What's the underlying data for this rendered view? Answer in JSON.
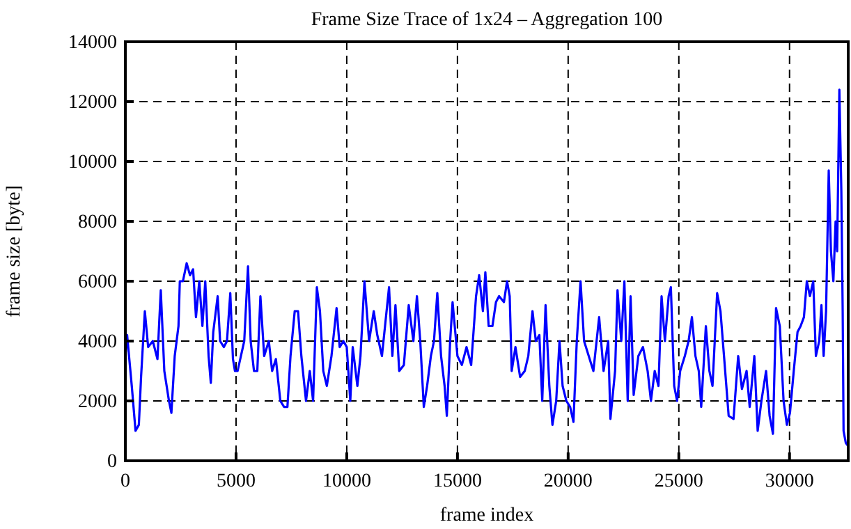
{
  "chart_data": {
    "type": "line",
    "title": "Frame Size Trace of 1x24 – Aggregation 100",
    "xlabel": "frame index",
    "ylabel": "frame size [byte]",
    "xlim": [
      0,
      32650
    ],
    "xticks": [
      0,
      5000,
      10000,
      15000,
      20000,
      25000,
      30000
    ],
    "ylim": [
      0,
      14000
    ],
    "yticks": [
      0,
      2000,
      4000,
      6000,
      8000,
      10000,
      12000,
      14000
    ],
    "grid": true,
    "marker": "none",
    "line_style": "solid",
    "series": [
      {
        "color": "#0000ff",
        "x": [
          0,
          80,
          290,
          460,
          610,
          710,
          880,
          1030,
          1240,
          1450,
          1600,
          1760,
          1970,
          2080,
          2230,
          2400,
          2460,
          2600,
          2770,
          2920,
          3060,
          3190,
          3340,
          3480,
          3610,
          3760,
          3860,
          3970,
          4170,
          4280,
          4450,
          4590,
          4740,
          4860,
          4950,
          5070,
          5220,
          5370,
          5540,
          5660,
          5810,
          5960,
          6100,
          6270,
          6480,
          6630,
          6800,
          7000,
          7170,
          7320,
          7460,
          7650,
          7800,
          7950,
          8160,
          8330,
          8480,
          8650,
          8790,
          8940,
          9100,
          9310,
          9540,
          9680,
          9850,
          10000,
          10160,
          10270,
          10480,
          10620,
          10800,
          11010,
          11220,
          11380,
          11590,
          11910,
          12060,
          12200,
          12370,
          12580,
          12800,
          13010,
          13170,
          13320,
          13480,
          13630,
          13800,
          13940,
          14090,
          14260,
          14420,
          14520,
          14670,
          14780,
          15000,
          15200,
          15410,
          15620,
          15840,
          15980,
          16150,
          16260,
          16410,
          16580,
          16740,
          16880,
          17100,
          17240,
          17360,
          17450,
          17620,
          17830,
          18040,
          18200,
          18390,
          18540,
          18700,
          18830,
          18980,
          19150,
          19290,
          19460,
          19610,
          19750,
          19920,
          20090,
          20240,
          20390,
          20560,
          20720,
          20930,
          21140,
          21400,
          21600,
          21810,
          21910,
          22120,
          22230,
          22400,
          22540,
          22690,
          22820,
          22960,
          23170,
          23380,
          23590,
          23740,
          23910,
          24080,
          24220,
          24370,
          24540,
          24640,
          24790,
          24920,
          25060,
          25270,
          25440,
          25590,
          25750,
          25900,
          26010,
          26220,
          26380,
          26520,
          26730,
          26880,
          27040,
          27250,
          27470,
          27680,
          27850,
          28060,
          28200,
          28410,
          28560,
          28730,
          28940,
          29100,
          29250,
          29390,
          29560,
          29730,
          29880,
          30020,
          30190,
          30360,
          30500,
          30650,
          30780,
          30920,
          31070,
          31190,
          31340,
          31440,
          31540,
          31650,
          31770,
          31870,
          31980,
          32080,
          32150,
          32250,
          32340,
          32400,
          32440,
          32540,
          32640
        ],
        "values": [
          3500,
          4200,
          2500,
          1000,
          1200,
          2800,
          5000,
          3800,
          4000,
          3400,
          5700,
          3000,
          2000,
          1600,
          3500,
          4500,
          6000,
          6000,
          6600,
          6200,
          6400,
          4800,
          6000,
          4500,
          6000,
          3500,
          2600,
          4300,
          5500,
          4000,
          3800,
          4000,
          5600,
          3400,
          3000,
          3000,
          3500,
          4000,
          6500,
          4000,
          3000,
          3000,
          5500,
          3500,
          4000,
          3000,
          3400,
          2000,
          1800,
          1800,
          3500,
          5000,
          5000,
          3500,
          2000,
          3000,
          2000,
          5800,
          5000,
          3000,
          2500,
          3500,
          5100,
          3800,
          4000,
          3800,
          2000,
          3800,
          2500,
          3500,
          6000,
          4000,
          5000,
          4200,
          3500,
          5800,
          3500,
          5200,
          3000,
          3200,
          5200,
          4000,
          5500,
          4000,
          1800,
          2500,
          3500,
          4000,
          5600,
          3500,
          2500,
          1500,
          4000,
          5300,
          3500,
          3200,
          3800,
          3200,
          5500,
          6200,
          5000,
          6300,
          4500,
          4500,
          5300,
          5500,
          5300,
          6000,
          5500,
          3000,
          3800,
          2800,
          3000,
          3500,
          5000,
          4000,
          4200,
          2000,
          5200,
          2500,
          1200,
          2000,
          4000,
          2500,
          2000,
          1800,
          1300,
          4000,
          6000,
          4000,
          3500,
          3000,
          4800,
          3000,
          4000,
          1400,
          3000,
          5700,
          4000,
          6000,
          2000,
          5500,
          2200,
          3500,
          3800,
          3000,
          2000,
          3000,
          2500,
          5500,
          4000,
          5500,
          5800,
          2500,
          2000,
          3000,
          3500,
          4000,
          4800,
          3500,
          3000,
          1800,
          4500,
          3000,
          2500,
          5600,
          5000,
          3500,
          1500,
          1400,
          3500,
          2400,
          3000,
          1800,
          3500,
          1000,
          2000,
          3000,
          1500,
          900,
          5100,
          4500,
          2000,
          1200,
          1600,
          3000,
          4300,
          4500,
          4800,
          6000,
          5500,
          6000,
          3500,
          4000,
          5200,
          3500,
          5000,
          9700,
          7000,
          6000,
          8000,
          7000,
          12400,
          9000,
          5000,
          1000,
          600,
          500
        ]
      }
    ]
  }
}
